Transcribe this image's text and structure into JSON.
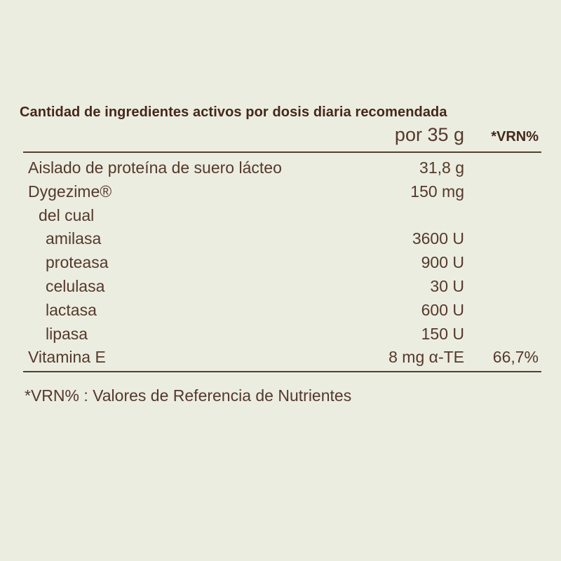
{
  "table": {
    "title": "Cantidad de ingredientes activos por dosis diaria recomendada",
    "columns": {
      "amount_label": "por 35 g",
      "vrn_label": "*VRN%"
    },
    "rows": [
      {
        "name": "Aislado de proteína de suero lácteo",
        "amount": "31,8 g",
        "vrn": "",
        "indent": 0
      },
      {
        "name": "Dygezime®",
        "amount": "150 mg",
        "vrn": "",
        "indent": 0
      },
      {
        "name": "del cual",
        "amount": "",
        "vrn": "",
        "indent": 1
      },
      {
        "name": "amilasa",
        "amount": "3600 U",
        "vrn": "",
        "indent": 2
      },
      {
        "name": "proteasa",
        "amount": "900 U",
        "vrn": "",
        "indent": 2
      },
      {
        "name": "celulasa",
        "amount": "30 U",
        "vrn": "",
        "indent": 2
      },
      {
        "name": "lactasa",
        "amount": "600 U",
        "vrn": "",
        "indent": 2
      },
      {
        "name": "lipasa",
        "amount": "150 U",
        "vrn": "",
        "indent": 2
      },
      {
        "name": "Vitamina E",
        "amount": "8 mg α-TE",
        "vrn": "66,7%",
        "indent": 0
      }
    ],
    "footnote": "*VRN% : Valores de Referencia de Nutrientes"
  },
  "colors": {
    "background": "#ebede0",
    "text": "#54392c",
    "title": "#45281b",
    "rule": "#54402f"
  }
}
